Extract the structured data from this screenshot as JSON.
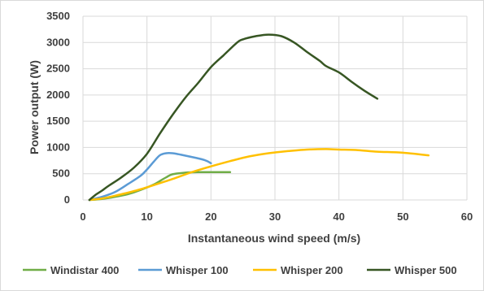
{
  "chart_data": {
    "type": "line",
    "title": "",
    "xlabel": "Instantaneous wind speed (m/s)",
    "ylabel": "Power output (W)",
    "xlim": [
      0,
      60
    ],
    "ylim": [
      0,
      3500
    ],
    "xticks": [
      0,
      10,
      20,
      30,
      40,
      50,
      60
    ],
    "yticks": [
      0,
      500,
      1000,
      1500,
      2000,
      2500,
      3000,
      3500
    ],
    "grid": true,
    "legend_position": "bottom",
    "series": [
      {
        "name": "Windistar 400",
        "color": "#70ad47",
        "points": [
          [
            1,
            0
          ],
          [
            3,
            20
          ],
          [
            5,
            60
          ],
          [
            7,
            110
          ],
          [
            9,
            190
          ],
          [
            11,
            290
          ],
          [
            12,
            360
          ],
          [
            13,
            430
          ],
          [
            14,
            490
          ],
          [
            16,
            520
          ],
          [
            18,
            530
          ],
          [
            20,
            530
          ],
          [
            23,
            530
          ]
        ]
      },
      {
        "name": "Whisper 100",
        "color": "#5b9bd5",
        "points": [
          [
            1,
            0
          ],
          [
            3,
            60
          ],
          [
            5,
            150
          ],
          [
            7,
            300
          ],
          [
            9,
            460
          ],
          [
            10,
            580
          ],
          [
            11,
            720
          ],
          [
            12,
            850
          ],
          [
            13,
            890
          ],
          [
            14,
            890
          ],
          [
            15,
            870
          ],
          [
            17,
            820
          ],
          [
            19,
            760
          ],
          [
            20,
            700
          ]
        ]
      },
      {
        "name": "Whisper 200",
        "color": "#ffc000",
        "points": [
          [
            1,
            0
          ],
          [
            3,
            30
          ],
          [
            5,
            80
          ],
          [
            8,
            170
          ],
          [
            11,
            280
          ],
          [
            14,
            400
          ],
          [
            17,
            530
          ],
          [
            20,
            640
          ],
          [
            23,
            740
          ],
          [
            26,
            830
          ],
          [
            29,
            890
          ],
          [
            32,
            930
          ],
          [
            35,
            960
          ],
          [
            38,
            970
          ],
          [
            40,
            960
          ],
          [
            43,
            950
          ],
          [
            46,
            920
          ],
          [
            50,
            900
          ],
          [
            54,
            850
          ]
        ]
      },
      {
        "name": "Whisper 500",
        "color": "#375623",
        "points": [
          [
            1,
            0
          ],
          [
            2,
            100
          ],
          [
            3,
            180
          ],
          [
            4,
            270
          ],
          [
            6,
            430
          ],
          [
            8,
            620
          ],
          [
            10,
            880
          ],
          [
            12,
            1260
          ],
          [
            14,
            1620
          ],
          [
            16,
            1950
          ],
          [
            18,
            2230
          ],
          [
            20,
            2530
          ],
          [
            22,
            2760
          ],
          [
            24,
            2990
          ],
          [
            25,
            3060
          ],
          [
            27,
            3120
          ],
          [
            29,
            3150
          ],
          [
            31,
            3120
          ],
          [
            33,
            3000
          ],
          [
            35,
            2820
          ],
          [
            37,
            2650
          ],
          [
            38,
            2550
          ],
          [
            40,
            2430
          ],
          [
            42,
            2250
          ],
          [
            44,
            2080
          ],
          [
            46,
            1930
          ]
        ]
      }
    ]
  }
}
